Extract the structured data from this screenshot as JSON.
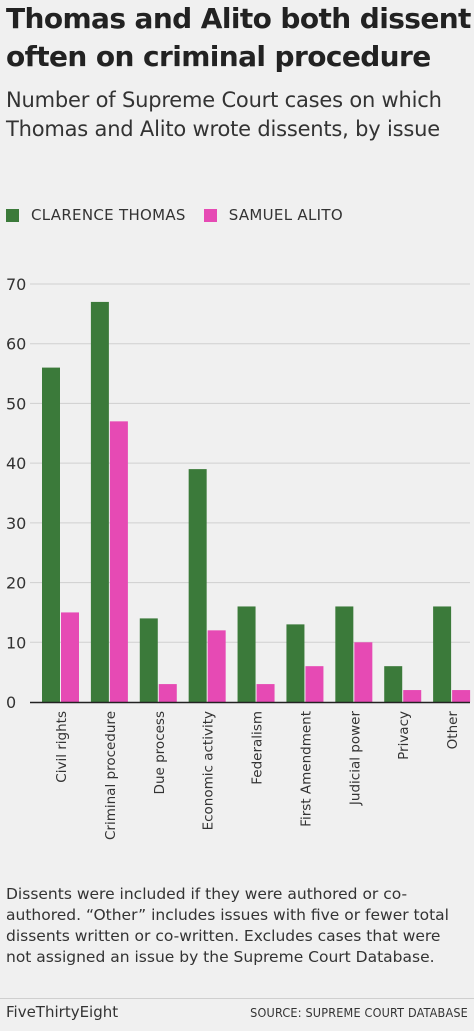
{
  "header": {
    "title": "Thomas and Alito both dissent often on criminal procedure",
    "subtitle": "Number of Supreme Court cases on which Thomas and Alito wrote dissents, by issue"
  },
  "legend": {
    "thomas": "CLARENCE THOMAS",
    "alito": "SAMUEL ALITO"
  },
  "colors": {
    "thomas": "#3b7a3a",
    "alito": "#e64ab4",
    "grid": "#cfcfcf",
    "axis": "#222222"
  },
  "chart_data": {
    "type": "bar",
    "title": "",
    "xlabel": "",
    "ylabel": "",
    "categories": [
      "Civil rights",
      "Criminal procedure",
      "Due process",
      "Economic activity",
      "Federalism",
      "First Amendment",
      "Judicial power",
      "Privacy",
      "Other"
    ],
    "series": [
      {
        "name": "CLARENCE THOMAS",
        "values": [
          56,
          67,
          14,
          39,
          16,
          13,
          16,
          6,
          16
        ]
      },
      {
        "name": "SAMUEL ALITO",
        "values": [
          15,
          47,
          3,
          12,
          3,
          6,
          10,
          2,
          2
        ]
      }
    ],
    "ylim": [
      0,
      70
    ],
    "yticks": [
      0,
      10,
      20,
      30,
      40,
      50,
      60,
      70
    ],
    "grid": true,
    "legend_position": "top-left"
  },
  "note": "Dissents were included if they were authored or co-authored. “Other” includes issues with five or fewer total dissents written or co-written. Excludes cases that were not assigned an issue by the Supreme Court Database.",
  "footer": {
    "brand": "FiveThirtyEight",
    "source": "SOURCE: SUPREME COURT DATABASE"
  }
}
